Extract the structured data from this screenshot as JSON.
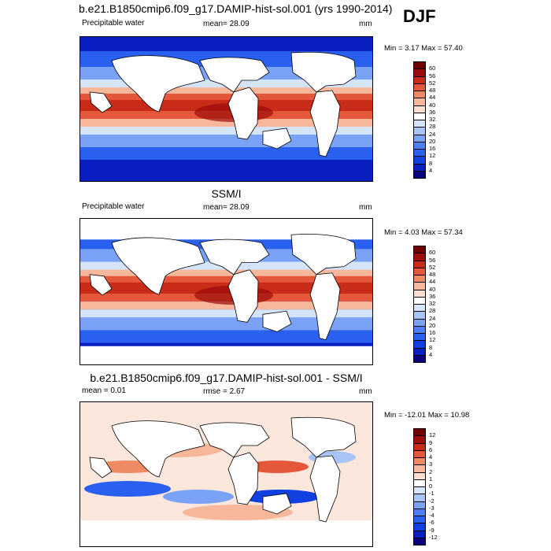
{
  "season": "DJF",
  "panels": [
    {
      "title": "b.e21.B1850cmip6.f09_g17.DAMIP-hist-sol.001 (yrs 1990-2014)",
      "variable": "Precipitable water",
      "mean_text": "mean=  28.09",
      "units": "mm",
      "minmax_text": "Min =   3.17 Max =  57.40"
    },
    {
      "title": "SSM/I",
      "variable": "Precipitable water",
      "mean_text": "mean=  28.09",
      "units": "mm",
      "minmax_text": "Min =   4.03 Max =  57.34"
    },
    {
      "title": "b.e21.B1850cmip6.f09_g17.DAMIP-hist-sol.001 - SSM/I",
      "variable": "",
      "mean_text": "mean =   0.01",
      "rmse_text": "rmse =    2.67",
      "units": "mm",
      "minmax_text": "Min = -12.01 Max =  10.98"
    }
  ],
  "chart_data": [
    {
      "type": "heatmap",
      "title": "b.e21.B1850cmip6.f09_g17.DAMIP-hist-sol.001 (yrs 1990-2014)",
      "variable": "Precipitable water",
      "units": "mm",
      "mean": 28.09,
      "min": 3.17,
      "max": 57.4,
      "colorbar_levels": [
        4,
        8,
        12,
        16,
        20,
        24,
        28,
        32,
        36,
        40,
        44,
        48,
        52,
        56,
        60
      ],
      "colorbar_colors": [
        "#08007e",
        "#0a1fbf",
        "#1040e0",
        "#2a60f0",
        "#4d80f5",
        "#7aa3f7",
        "#a8c4f7",
        "#d4e4fa",
        "#ffffff",
        "#fbe0cf",
        "#f7b79a",
        "#f08a63",
        "#e5573a",
        "#c82b18",
        "#9b0c0c",
        "#6e0000"
      ]
    },
    {
      "type": "heatmap",
      "title": "SSM/I",
      "variable": "Precipitable water",
      "units": "mm",
      "mean": 28.09,
      "min": 4.03,
      "max": 57.34,
      "colorbar_levels": [
        4,
        8,
        12,
        16,
        20,
        24,
        28,
        32,
        36,
        40,
        44,
        48,
        52,
        56,
        60
      ],
      "colorbar_colors": [
        "#08007e",
        "#0a1fbf",
        "#1040e0",
        "#2a60f0",
        "#4d80f5",
        "#7aa3f7",
        "#a8c4f7",
        "#d4e4fa",
        "#ffffff",
        "#fbe0cf",
        "#f7b79a",
        "#f08a63",
        "#e5573a",
        "#c82b18",
        "#9b0c0c",
        "#6e0000"
      ]
    },
    {
      "type": "heatmap",
      "title": "b.e21.B1850cmip6.f09_g17.DAMIP-hist-sol.001 - SSM/I",
      "units": "mm",
      "mean": 0.01,
      "rmse": 2.67,
      "min": -12.01,
      "max": 10.98,
      "colorbar_levels": [
        -12,
        -9,
        -6,
        -4,
        -3,
        -2,
        -1,
        0,
        1,
        2,
        3,
        4,
        6,
        9,
        12
      ],
      "colorbar_colors": [
        "#08007e",
        "#0a1fbf",
        "#1040e0",
        "#2a60f0",
        "#4d80f5",
        "#7aa3f7",
        "#a8c4f7",
        "#d4e4fa",
        "#ffffff",
        "#fbe0cf",
        "#f7b79a",
        "#f08a63",
        "#e5573a",
        "#c82b18",
        "#9b0c0c",
        "#6e0000"
      ]
    }
  ]
}
